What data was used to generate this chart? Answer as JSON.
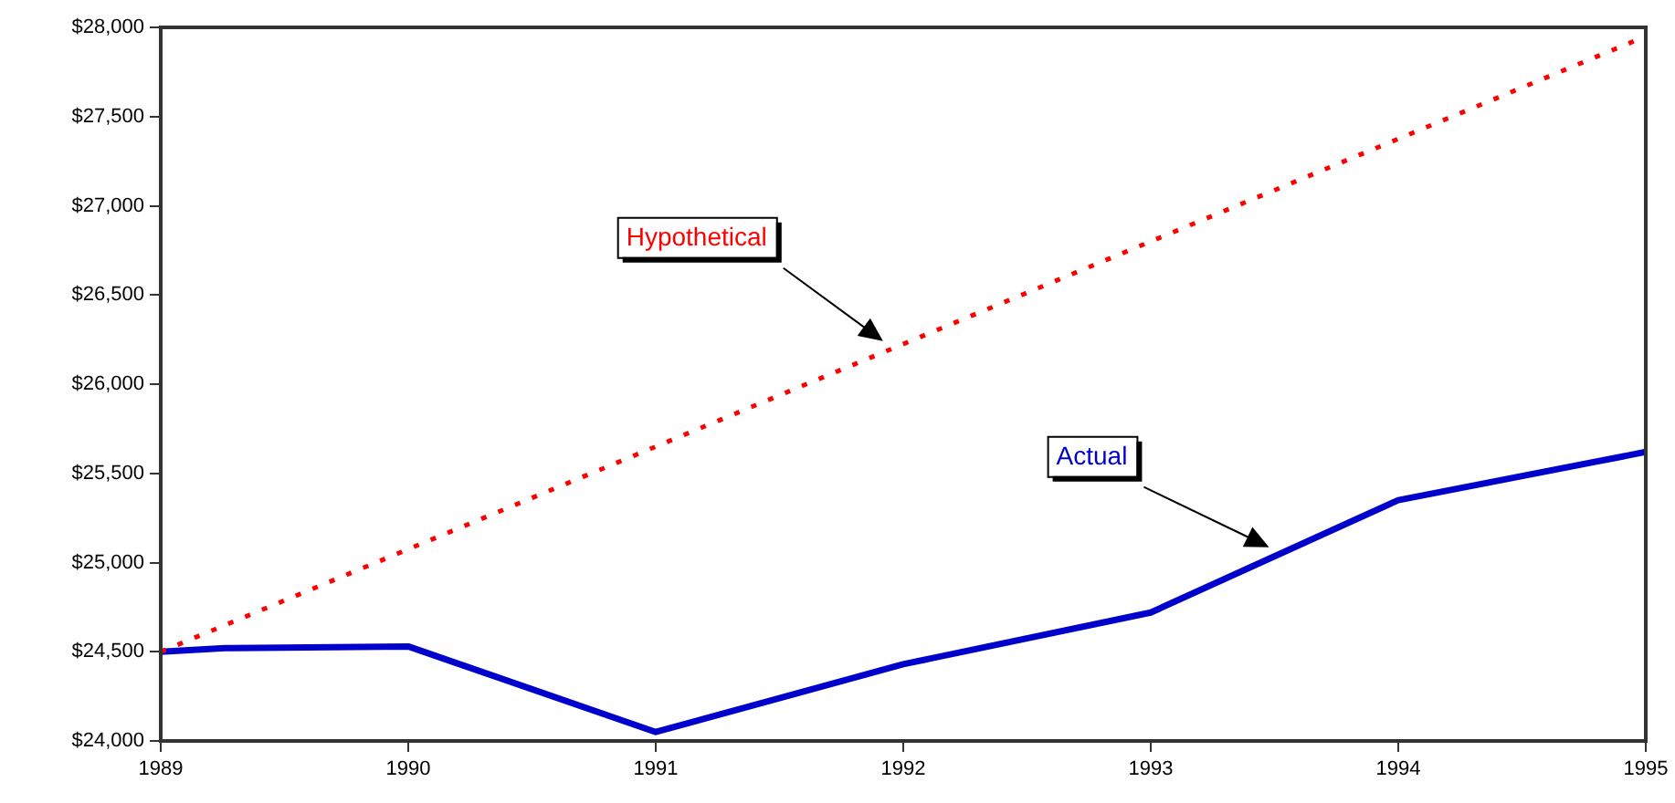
{
  "chart_data": {
    "type": "line",
    "xlim": [
      1989,
      1995
    ],
    "xticks": [
      1989,
      1990,
      1991,
      1992,
      1993,
      1994,
      1995
    ],
    "ylim": [
      24000,
      28000
    ],
    "yticks": [
      {
        "value": 24000,
        "label": "$24,000"
      },
      {
        "value": 24500,
        "label": "$24,500"
      },
      {
        "value": 25000,
        "label": "$25,000"
      },
      {
        "value": 25500,
        "label": "$25,500"
      },
      {
        "value": 26000,
        "label": "$26,000"
      },
      {
        "value": 26500,
        "label": "$26,500"
      },
      {
        "value": 27000,
        "label": "$27,000"
      },
      {
        "value": 27500,
        "label": "$27,500"
      },
      {
        "value": 28000,
        "label": "$28,000"
      }
    ],
    "grid": false,
    "legend": false,
    "marker": "none",
    "series": [
      {
        "name": "Hypothetical",
        "color": "#ff0000",
        "line_style": "dotted",
        "x": [
          1989,
          1995
        ],
        "values": [
          24500,
          27950
        ]
      },
      {
        "name": "Actual",
        "color": "#0000cc",
        "line_style": "solid",
        "x": [
          1989,
          1989.26,
          1990,
          1991,
          1992,
          1993,
          1994,
          1995
        ],
        "values": [
          24500,
          24520,
          24530,
          24050,
          24430,
          24720,
          25350,
          25620
        ]
      }
    ]
  }
}
